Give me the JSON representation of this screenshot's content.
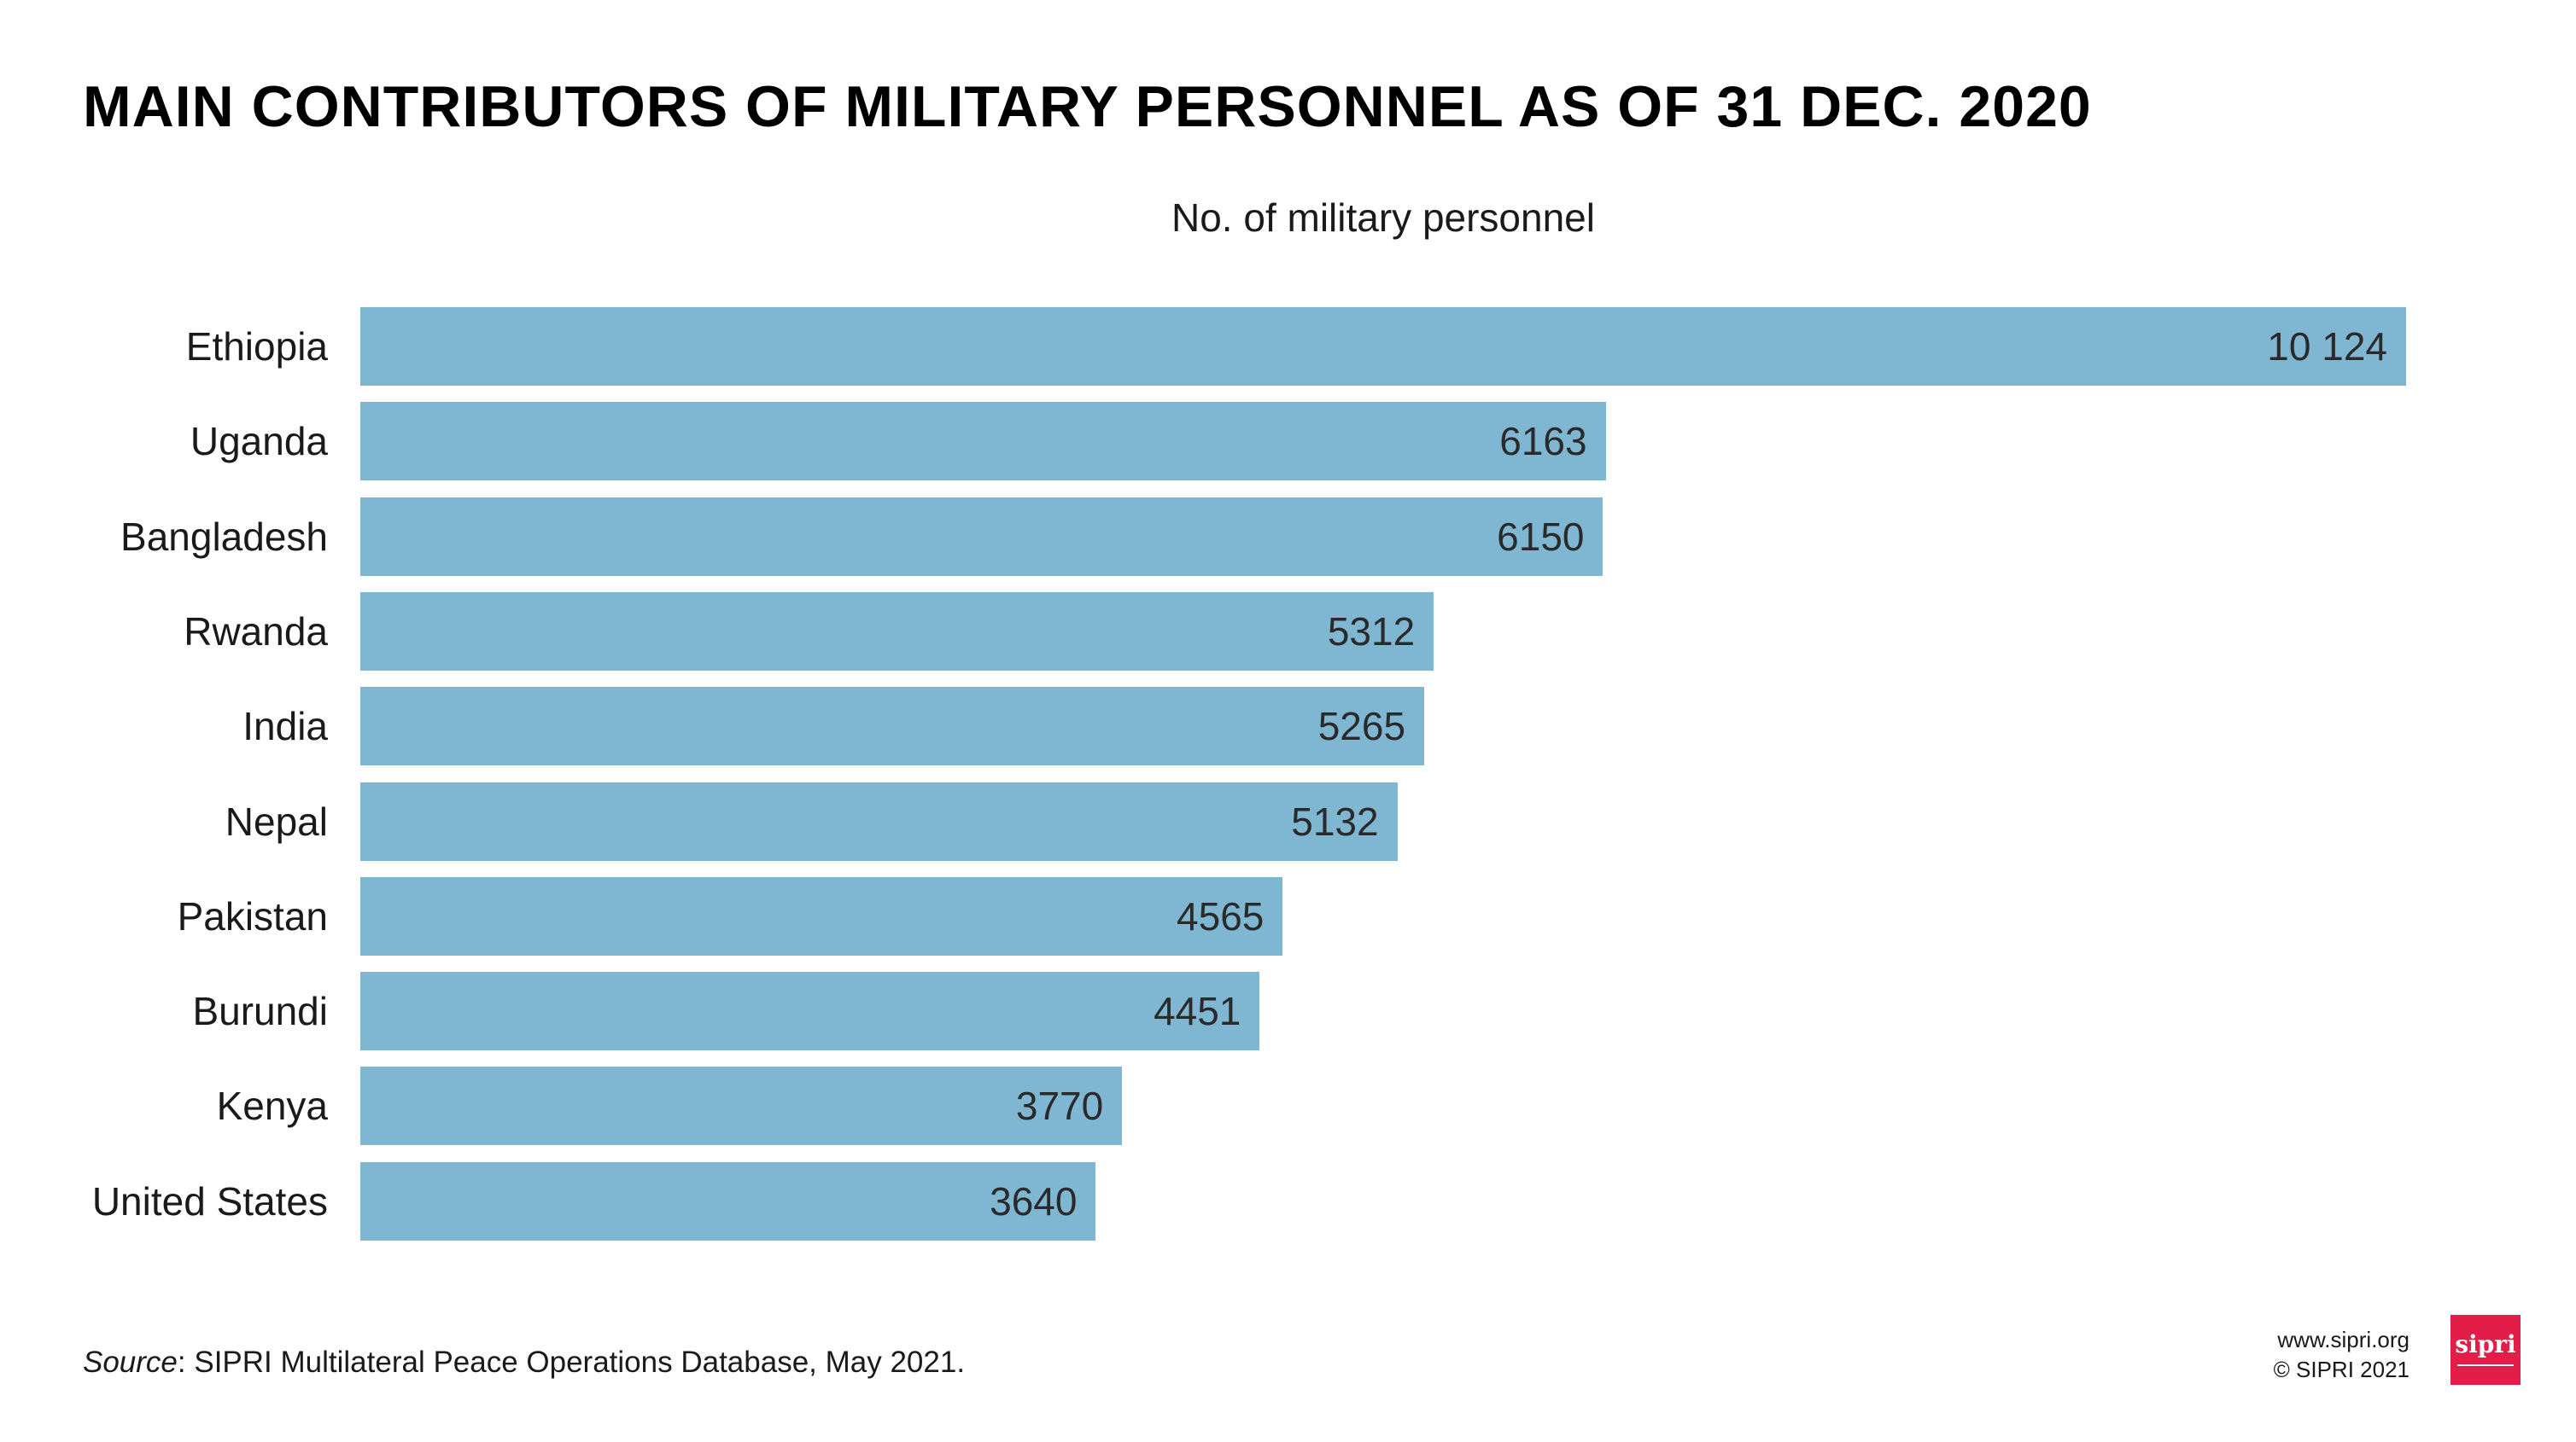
{
  "chart_data": {
    "type": "bar",
    "orientation": "horizontal",
    "title": "MAIN CONTRIBUTORS OF MILITARY PERSONNEL AS OF 31 DEC. 2020",
    "xlabel": "No. of military personnel",
    "ylabel": "",
    "categories": [
      "Ethiopia",
      "Uganda",
      "Bangladesh",
      "Rwanda",
      "India",
      "Nepal",
      "Pakistan",
      "Burundi",
      "Kenya",
      "United States"
    ],
    "values": [
      10124,
      6163,
      6150,
      5312,
      5265,
      5132,
      4565,
      4451,
      3770,
      3640
    ],
    "value_labels": [
      "10 124",
      "6163",
      "6150",
      "5312",
      "5265",
      "5132",
      "4565",
      "4451",
      "3770",
      "3640"
    ],
    "xlim": [
      0,
      10124
    ],
    "grid": false,
    "bar_color": "#7fb6d2"
  },
  "footer": {
    "source_label": "Source",
    "source_text": ": SIPRI Multilateral Peace Operations Database, May 2021.",
    "website": "www.sipri.org",
    "copyright": "© SIPRI 2021",
    "logo_text": "sipri",
    "logo_color": "#e11d48"
  }
}
